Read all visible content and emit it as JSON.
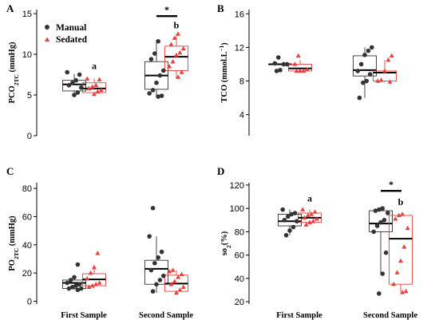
{
  "colors": {
    "manual": "#333333",
    "sedated": "#e8413c"
  },
  "legend": {
    "manual": "Manual",
    "sedated": "Sedated"
  },
  "categories": [
    "First Sample",
    "Second Sample"
  ],
  "chart_data": [
    {
      "panel": "A",
      "type": "box",
      "ylabel": "PCO2TC (mmHg)",
      "ylabel_main": "PCO",
      "ylabel_sub": "2TC",
      "ylabel_rest": " (mmHg)",
      "ylim": [
        0,
        15.5
      ],
      "yticks": [
        0,
        5,
        10,
        15
      ],
      "boxes": [
        {
          "cat": 0,
          "series": "manual",
          "q1": 5.5,
          "median": 6.3,
          "q3": 6.8,
          "lo": 5.0,
          "hi": 7.6
        },
        {
          "cat": 0,
          "series": "sedated",
          "q1": 5.3,
          "median": 5.8,
          "q3": 6.5,
          "lo": 5.0,
          "hi": 7.0
        },
        {
          "cat": 1,
          "series": "manual",
          "q1": 5.7,
          "median": 7.4,
          "q3": 9.1,
          "lo": 4.8,
          "hi": 11.5
        },
        {
          "cat": 1,
          "series": "sedated",
          "q1": 8.0,
          "median": 9.7,
          "q3": 11.0,
          "lo": 7.0,
          "hi": 12.5
        }
      ],
      "points": [
        {
          "cat": 0,
          "series": "manual",
          "values": [
            7.8,
            7.5,
            6.8,
            6.5,
            6.2,
            5.9,
            5.3,
            5.0
          ]
        },
        {
          "cat": 0,
          "series": "sedated",
          "values": [
            7.0,
            6.9,
            6.2,
            6.0,
            5.8,
            5.6,
            5.4,
            5.1
          ]
        },
        {
          "cat": 1,
          "series": "manual",
          "values": [
            11.6,
            10.1,
            9.4,
            8.0,
            7.4,
            6.5,
            5.6,
            5.2,
            4.9,
            4.8
          ]
        },
        {
          "cat": 1,
          "series": "sedated",
          "values": [
            12.5,
            12.0,
            11.2,
            10.7,
            10.2,
            9.9,
            9.1,
            8.5,
            7.8,
            7.2
          ]
        }
      ],
      "letters": [
        {
          "cat": 0,
          "series": "sedated",
          "text": "a",
          "y": 8.2
        },
        {
          "cat": 1,
          "series": "sedated",
          "text": "b",
          "y": 13.2
        }
      ],
      "sig_bar": {
        "cat": 1,
        "text": "*",
        "y": 14.7
      },
      "show_legend": true
    },
    {
      "panel": "B",
      "type": "box",
      "ylabel": "TCO (mmol.L−1)",
      "ylabel_main": "TCO (mmol.L",
      "ylabel_sup": "−1",
      "ylabel_rest": ")",
      "ylim": [
        1.5,
        16.5
      ],
      "yticks": [
        4,
        8,
        12,
        16
      ],
      "boxes": [
        {
          "cat": 0,
          "series": "manual",
          "q1": 10.0,
          "median": 10.0,
          "q3": 10.0,
          "lo": 10.0,
          "hi": 10.0
        },
        {
          "cat": 0,
          "series": "sedated",
          "q1": 9.2,
          "median": 9.5,
          "q3": 10.0,
          "lo": 9.0,
          "hi": 10.5
        },
        {
          "cat": 1,
          "series": "manual",
          "q1": 8.6,
          "median": 9.3,
          "q3": 11.0,
          "lo": 6.0,
          "hi": 12.0
        },
        {
          "cat": 1,
          "series": "sedated",
          "q1": 8.0,
          "median": 9.0,
          "q3": 9.2,
          "lo": 7.8,
          "hi": 10.5
        }
      ],
      "points": [
        {
          "cat": 0,
          "series": "manual",
          "values": [
            10.8,
            10.1,
            10.0,
            10.0,
            9.3,
            9.2
          ]
        },
        {
          "cat": 0,
          "series": "sedated",
          "values": [
            11.0,
            10.0,
            9.4,
            9.2,
            9.2,
            9.2
          ]
        },
        {
          "cat": 1,
          "series": "manual",
          "values": [
            12.0,
            11.6,
            11.1,
            10.0,
            9.2,
            8.8,
            8.0,
            7.8,
            6.0
          ]
        },
        {
          "cat": 1,
          "series": "sedated",
          "values": [
            11.0,
            10.5,
            9.2,
            8.1,
            8.0,
            7.9
          ]
        }
      ],
      "letters": [],
      "sig_bar": null,
      "show_legend": false
    },
    {
      "panel": "C",
      "type": "box",
      "ylabel": "PO2TC (mmHg)",
      "ylabel_main": "PO",
      "ylabel_sub": "2TC",
      "ylabel_rest": " (mmHg)",
      "ylim": [
        -2,
        84
      ],
      "yticks": [
        0,
        20,
        40,
        60,
        80
      ],
      "boxes": [
        {
          "cat": 0,
          "series": "manual",
          "q1": 9.0,
          "median": 13.0,
          "q3": 15.0,
          "lo": 8.0,
          "hi": 18.0
        },
        {
          "cat": 0,
          "series": "sedated",
          "q1": 11.0,
          "median": 15.5,
          "q3": 19.5,
          "lo": 9.0,
          "hi": 24.0
        },
        {
          "cat": 1,
          "series": "manual",
          "q1": 12.0,
          "median": 23.0,
          "q3": 29.0,
          "lo": 6.0,
          "hi": 46.0
        },
        {
          "cat": 1,
          "series": "sedated",
          "q1": 7.0,
          "median": 12.5,
          "q3": 18.5,
          "lo": 5.0,
          "hi": 22.0
        }
      ],
      "points": [
        {
          "cat": 0,
          "series": "manual",
          "values": [
            26,
            17,
            15,
            13,
            12,
            11,
            10,
            9,
            9,
            8
          ]
        },
        {
          "cat": 0,
          "series": "sedated",
          "values": [
            34,
            24,
            20,
            16,
            13,
            12,
            11,
            10
          ]
        },
        {
          "cat": 1,
          "series": "manual",
          "values": [
            66,
            46,
            35,
            31,
            27,
            22,
            18,
            15,
            12,
            7
          ]
        },
        {
          "cat": 1,
          "series": "sedated",
          "values": [
            22,
            21,
            19,
            17,
            14,
            12,
            10,
            8,
            6
          ]
        }
      ],
      "letters": [],
      "sig_bar": null,
      "show_legend": false
    },
    {
      "panel": "D",
      "type": "box",
      "ylabel": "so2(%)",
      "ylabel_main": "so",
      "ylabel_sub": "2",
      "ylabel_rest": "(%)",
      "ylim": [
        18,
        122
      ],
      "yticks": [
        20,
        40,
        60,
        80,
        100,
        120
      ],
      "boxes": [
        {
          "cat": 0,
          "series": "manual",
          "q1": 85.0,
          "median": 89.0,
          "q3": 95.0,
          "lo": 77.0,
          "hi": 99.0
        },
        {
          "cat": 0,
          "series": "sedated",
          "q1": 88.0,
          "median": 92.0,
          "q3": 96.0,
          "lo": 86.0,
          "hi": 99.0
        },
        {
          "cat": 1,
          "series": "manual",
          "q1": 80.0,
          "median": 87.0,
          "q3": 98.0,
          "lo": 44.0,
          "hi": 100.0
        },
        {
          "cat": 1,
          "series": "sedated",
          "q1": 35.0,
          "median": 74.0,
          "q3": 94.0,
          "lo": 28.0,
          "hi": 95.0
        }
      ],
      "points": [
        {
          "cat": 0,
          "series": "manual",
          "values": [
            99,
            96,
            95,
            93,
            90,
            89,
            84,
            81,
            77
          ]
        },
        {
          "cat": 0,
          "series": "sedated",
          "values": [
            99,
            97,
            95,
            94,
            92,
            91,
            89,
            88,
            86
          ]
        },
        {
          "cat": 1,
          "series": "manual",
          "values": [
            100,
            99,
            98,
            96,
            90,
            88,
            85,
            80,
            62,
            44,
            27
          ]
        },
        {
          "cat": 1,
          "series": "sedated",
          "values": [
            95,
            94,
            91,
            83,
            67,
            55,
            45,
            35,
            29,
            28
          ]
        }
      ],
      "letters": [
        {
          "cat": 0,
          "series": "sedated",
          "text": "a",
          "y": 106
        },
        {
          "cat": 1,
          "series": "sedated",
          "text": "b",
          "y": 103
        }
      ],
      "sig_bar": {
        "cat": 1,
        "text": "*",
        "y": 115
      },
      "show_legend": false
    }
  ]
}
